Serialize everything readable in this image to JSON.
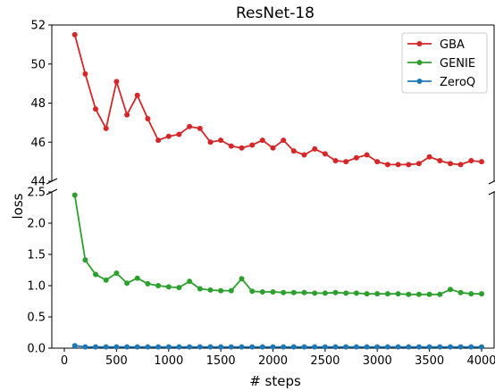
{
  "chart_data": {
    "type": "line",
    "title": "ResNet-18",
    "xlabel": "# steps",
    "ylabel": "loss",
    "x_ticks": [
      "0",
      "500",
      "1000",
      "1500",
      "2000",
      "2500",
      "3000",
      "3500",
      "4000"
    ],
    "x_tick_values": [
      0,
      500,
      1000,
      1500,
      2000,
      2500,
      3000,
      3500,
      4000
    ],
    "xlim": [
      -120,
      4120
    ],
    "broken_axis": true,
    "top_panel": {
      "ylim": [
        44,
        52
      ],
      "y_ticks": [
        "44",
        "46",
        "48",
        "50",
        "52"
      ],
      "y_tick_values": [
        44,
        46,
        48,
        50,
        52
      ]
    },
    "bottom_panel": {
      "ylim": [
        0,
        2.5
      ],
      "y_ticks": [
        "0.0",
        "0.5",
        "1.0",
        "1.5",
        "2.0",
        "2.5"
      ],
      "y_tick_values": [
        0,
        0.5,
        1.0,
        1.5,
        2.0,
        2.5
      ]
    },
    "legend_position": "top-right",
    "x": [
      100,
      200,
      300,
      400,
      500,
      600,
      700,
      800,
      900,
      1000,
      1100,
      1200,
      1300,
      1400,
      1500,
      1600,
      1700,
      1800,
      1900,
      2000,
      2100,
      2200,
      2300,
      2400,
      2500,
      2600,
      2700,
      2800,
      2900,
      3000,
      3100,
      3200,
      3300,
      3400,
      3500,
      3600,
      3700,
      3800,
      3900,
      4000
    ],
    "series": [
      {
        "name": "GBA",
        "color": "#d62728",
        "panel": "top",
        "values": [
          51.5,
          49.5,
          47.7,
          46.7,
          49.1,
          47.4,
          48.4,
          47.2,
          46.1,
          46.3,
          46.4,
          46.8,
          46.7,
          46.0,
          46.1,
          45.8,
          45.7,
          45.85,
          46.1,
          45.7,
          46.1,
          45.55,
          45.35,
          45.65,
          45.4,
          45.05,
          45.0,
          45.2,
          45.35,
          45.0,
          44.85,
          44.85,
          44.85,
          44.9,
          45.25,
          45.05,
          44.9,
          44.85,
          45.05,
          45.0
        ]
      },
      {
        "name": "GENIE",
        "color": "#2ca02c",
        "panel": "bottom",
        "values": [
          2.45,
          1.41,
          1.18,
          1.09,
          1.2,
          1.04,
          1.12,
          1.03,
          1.0,
          0.98,
          0.97,
          1.07,
          0.95,
          0.93,
          0.92,
          0.92,
          1.11,
          0.91,
          0.9,
          0.9,
          0.89,
          0.89,
          0.89,
          0.88,
          0.88,
          0.89,
          0.88,
          0.88,
          0.87,
          0.87,
          0.87,
          0.87,
          0.86,
          0.86,
          0.86,
          0.86,
          0.94,
          0.89,
          0.87,
          0.87
        ]
      },
      {
        "name": "ZeroQ",
        "color": "#1f77b4",
        "panel": "bottom",
        "values": [
          0.04,
          0.02,
          0.02,
          0.02,
          0.02,
          0.02,
          0.02,
          0.02,
          0.02,
          0.02,
          0.02,
          0.02,
          0.02,
          0.02,
          0.02,
          0.02,
          0.02,
          0.02,
          0.02,
          0.02,
          0.02,
          0.02,
          0.02,
          0.02,
          0.02,
          0.02,
          0.02,
          0.02,
          0.02,
          0.02,
          0.02,
          0.02,
          0.02,
          0.02,
          0.02,
          0.02,
          0.02,
          0.02,
          0.02,
          0.02
        ]
      }
    ]
  }
}
